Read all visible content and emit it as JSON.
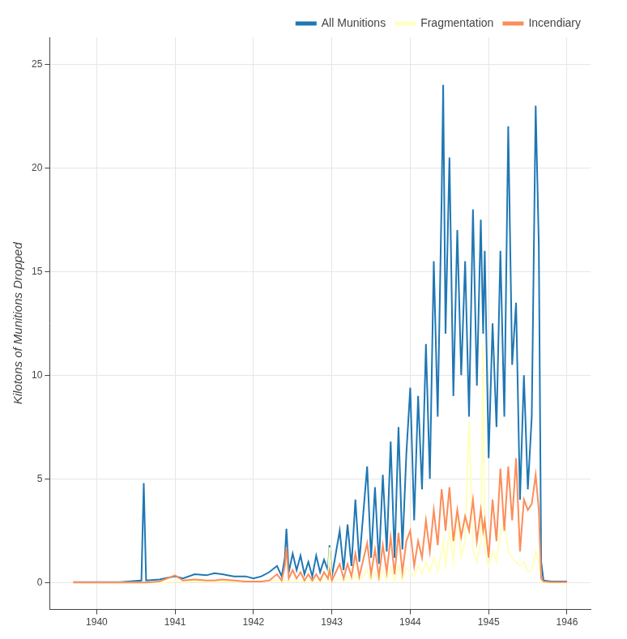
{
  "chart_data": {
    "type": "line",
    "y_label": "Kilotons of Munitions Dropped",
    "x": [
      1939.7,
      1940.0,
      1940.3,
      1940.57,
      1940.6,
      1940.63,
      1940.8,
      1941.0,
      1941.1,
      1941.25,
      1941.4,
      1941.5,
      1941.6,
      1941.75,
      1941.9,
      1942.0,
      1942.1,
      1942.2,
      1942.3,
      1942.36,
      1942.4,
      1942.42,
      1942.45,
      1942.5,
      1942.55,
      1942.6,
      1942.65,
      1942.7,
      1942.75,
      1942.8,
      1942.85,
      1942.9,
      1942.95,
      1942.97,
      1943.0,
      1943.05,
      1943.1,
      1943.15,
      1943.2,
      1943.25,
      1943.3,
      1943.35,
      1943.4,
      1943.45,
      1943.5,
      1943.55,
      1943.6,
      1943.65,
      1943.7,
      1943.75,
      1943.8,
      1943.85,
      1943.9,
      1943.95,
      1944.0,
      1944.05,
      1944.1,
      1944.15,
      1944.2,
      1944.25,
      1944.3,
      1944.35,
      1944.4,
      1944.42,
      1944.45,
      1944.5,
      1944.55,
      1944.6,
      1944.65,
      1944.7,
      1944.75,
      1944.8,
      1944.85,
      1944.9,
      1944.93,
      1944.95,
      1945.0,
      1945.05,
      1945.1,
      1945.15,
      1945.2,
      1945.25,
      1945.3,
      1945.35,
      1945.4,
      1945.45,
      1945.5,
      1945.55,
      1945.6,
      1945.64,
      1945.67,
      1945.7,
      1945.8,
      1945.9,
      1946.0
    ],
    "series": [
      {
        "name": "All Munitions",
        "color": "#1f77b4",
        "values": [
          0.02,
          0.02,
          0.02,
          0.1,
          4.8,
          0.1,
          0.15,
          0.3,
          0.2,
          0.4,
          0.35,
          0.45,
          0.4,
          0.3,
          0.3,
          0.2,
          0.3,
          0.5,
          0.8,
          0.3,
          1.2,
          2.6,
          0.5,
          1.4,
          0.6,
          1.3,
          0.4,
          1.0,
          0.3,
          1.3,
          0.5,
          1.1,
          0.6,
          1.8,
          0.3,
          1.4,
          2.5,
          0.6,
          2.8,
          0.8,
          4.0,
          1.0,
          3.3,
          5.6,
          1.2,
          4.6,
          0.9,
          5.2,
          1.5,
          6.8,
          1.2,
          7.5,
          1.6,
          6.2,
          9.4,
          3.0,
          9.0,
          4.5,
          11.5,
          5.0,
          15.5,
          8.0,
          18.5,
          24.0,
          12.0,
          20.5,
          9.0,
          17.0,
          10.0,
          15.5,
          8.0,
          18.0,
          9.5,
          17.5,
          12.0,
          16.0,
          6.0,
          12.5,
          7.5,
          16.0,
          8.0,
          22.0,
          10.5,
          13.5,
          4.0,
          10.0,
          4.5,
          8.0,
          23.0,
          16.3,
          1.0,
          0.1,
          0.05,
          0.05,
          0.05
        ]
      },
      {
        "name": "Fragmentation",
        "color": "#ffffbf",
        "values": [
          0,
          0,
          0,
          0,
          0,
          0,
          0,
          0.05,
          0.05,
          0.05,
          0.05,
          0.05,
          0.05,
          0.05,
          0.05,
          0.05,
          0.05,
          0.1,
          0.1,
          0.05,
          0.1,
          0.1,
          0.05,
          0.1,
          0.05,
          0.1,
          0.05,
          0.1,
          0.05,
          0.2,
          0.05,
          0.2,
          0.1,
          1.7,
          0.05,
          0.1,
          0.2,
          0.05,
          0.3,
          0.1,
          0.4,
          0.1,
          0.3,
          0.6,
          0.1,
          0.5,
          0.1,
          0.6,
          0.1,
          0.7,
          0.1,
          0.8,
          0.1,
          0.7,
          0.5,
          0.3,
          0.8,
          0.4,
          1.0,
          0.5,
          1.2,
          0.6,
          1.5,
          2.0,
          0.8,
          2.5,
          1.0,
          3.5,
          1.2,
          2.0,
          7.8,
          1.5,
          1.0,
          2.0,
          11.5,
          1.5,
          0.8,
          1.5,
          1.0,
          2.5,
          3.0,
          1.5,
          1.2,
          1.0,
          0.8,
          1.0,
          0.5,
          0.6,
          1.5,
          1.0,
          0.1,
          0,
          0,
          0,
          0
        ]
      },
      {
        "name": "Incendiary",
        "color": "#fc8d59",
        "values": [
          0,
          0,
          0,
          0,
          0,
          0,
          0.05,
          0.35,
          0.1,
          0.15,
          0.1,
          0.1,
          0.15,
          0.1,
          0.05,
          0.05,
          0.05,
          0.1,
          0.4,
          0.1,
          0.8,
          1.7,
          0.2,
          0.6,
          0.2,
          0.5,
          0.1,
          0.4,
          0.1,
          0.4,
          0.1,
          0.5,
          0.2,
          0.6,
          0.1,
          0.5,
          0.9,
          0.2,
          0.9,
          0.3,
          1.4,
          0.3,
          1.1,
          1.9,
          0.4,
          1.6,
          0.3,
          1.8,
          0.5,
          2.2,
          0.4,
          2.4,
          0.5,
          2.0,
          2.5,
          0.8,
          2.0,
          1.2,
          3.0,
          1.5,
          3.5,
          1.8,
          4.5,
          3.8,
          2.5,
          4.6,
          2.0,
          3.5,
          2.2,
          3.2,
          2.5,
          4.0,
          2.0,
          3.5,
          2.5,
          3.0,
          1.2,
          4.0,
          2.0,
          5.5,
          2.5,
          5.6,
          3.0,
          6.0,
          1.5,
          4.0,
          3.5,
          3.8,
          5.2,
          3.5,
          0.2,
          0.05,
          0.02,
          0.02,
          0.02
        ]
      }
    ],
    "xlim": [
      1939.4,
      1946.3
    ],
    "xticks": [
      1940,
      1941,
      1942,
      1943,
      1944,
      1945,
      1946
    ],
    "ylim": [
      -1.3,
      26.3
    ],
    "yticks": [
      0,
      5,
      10,
      15,
      20,
      25
    ],
    "grid": true,
    "legend": "top-right"
  }
}
